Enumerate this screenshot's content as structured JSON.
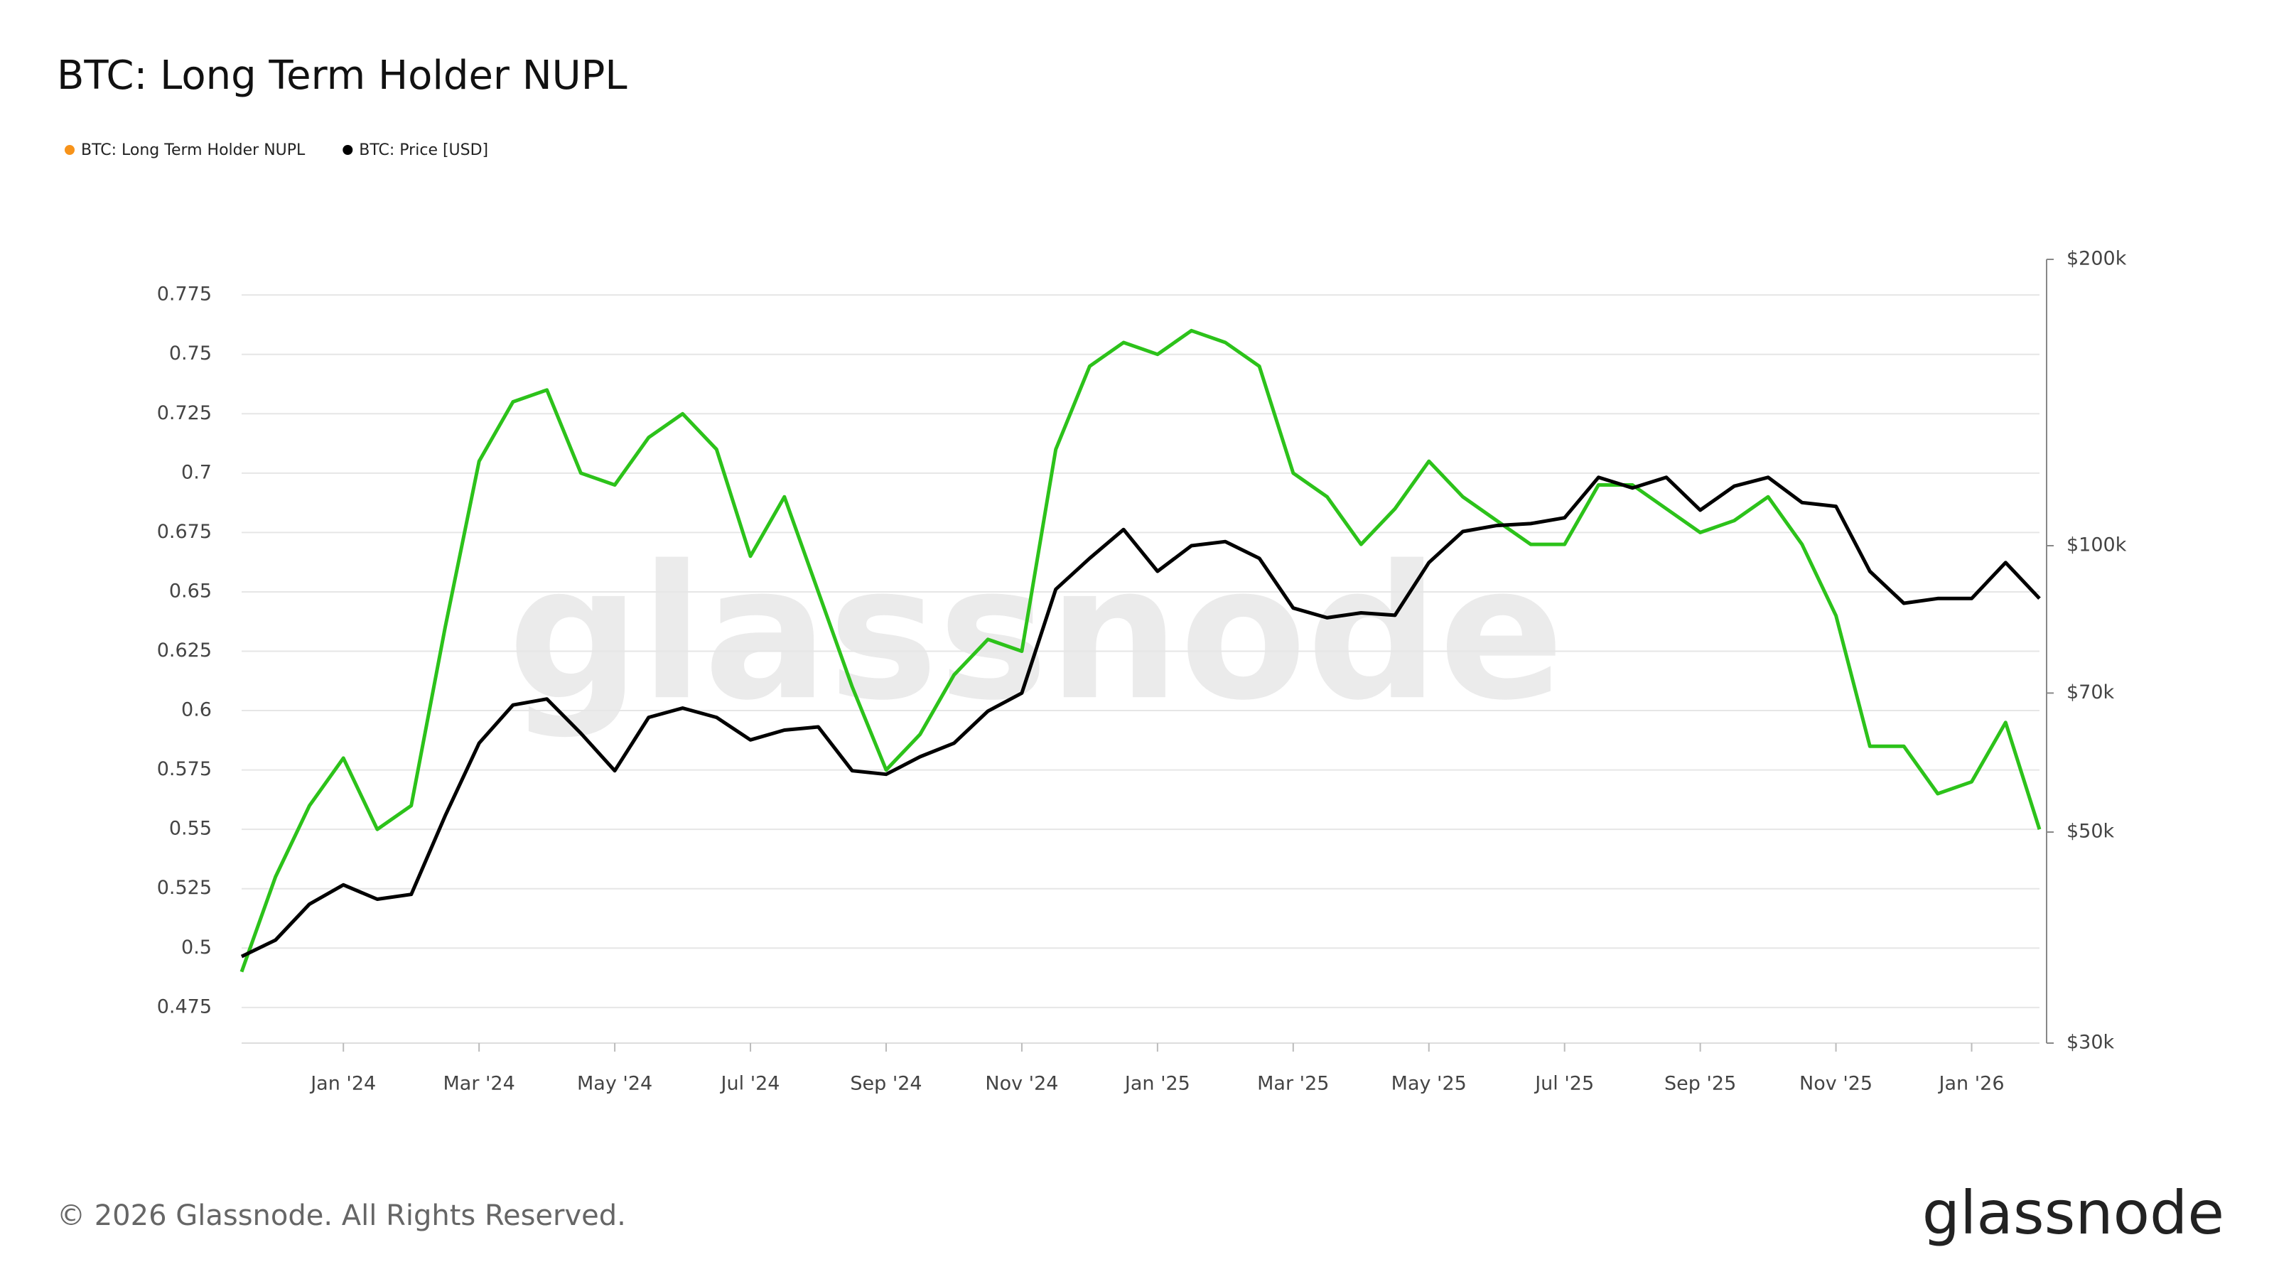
{
  "chart_data": {
    "type": "line",
    "title": "BTC: Long Term Holder NUPL",
    "copyright": "© 2026 Glassnode. All Rights Reserved.",
    "watermark": "glassnode",
    "logo": "glassnode",
    "categories": [
      null,
      null,
      null,
      "Jan '24",
      null,
      null,
      null,
      "Mar '24",
      null,
      null,
      null,
      "May '24",
      null,
      null,
      null,
      "Jul '24",
      null,
      null,
      null,
      "Sep '24",
      null,
      null,
      null,
      "Nov '24",
      null,
      null,
      null,
      "Jan '25",
      null,
      null,
      null,
      "Mar '25",
      null,
      null,
      null,
      "May '25",
      null,
      null,
      null,
      "Jul '25",
      null,
      null,
      null,
      "Sep '25",
      null,
      null,
      null,
      "Nov '25",
      null,
      null,
      null,
      "Jan '26",
      null,
      null
    ],
    "series": [
      {
        "name": "BTC: Long Term Holder NUPL",
        "color": "#f7931a",
        "line_color": "#2cc21a",
        "values": [
          0.49,
          0.53,
          0.56,
          0.58,
          0.55,
          0.56,
          0.635,
          0.705,
          0.73,
          0.735,
          0.7,
          0.695,
          0.715,
          0.725,
          0.71,
          0.665,
          0.69,
          0.65,
          0.61,
          0.575,
          0.59,
          0.615,
          0.63,
          0.625,
          0.71,
          0.745,
          0.755,
          0.75,
          0.76,
          0.755,
          0.745,
          0.7,
          0.69,
          0.67,
          0.685,
          0.705,
          0.69,
          0.68,
          0.67,
          0.67,
          0.695,
          0.695,
          0.685,
          0.675,
          0.68,
          0.69,
          0.67,
          0.64,
          0.585,
          0.585,
          0.565,
          0.57,
          0.595,
          0.55
        ]
      },
      {
        "name": "BTC: Price [USD]",
        "color": "#000000",
        "axis": "y2",
        "values": [
          37000,
          38500,
          42000,
          44000,
          42500,
          43000,
          52000,
          62000,
          68000,
          69000,
          63500,
          58000,
          66000,
          67500,
          66000,
          62500,
          64000,
          64500,
          58000,
          57500,
          60000,
          62000,
          67000,
          70000,
          90000,
          97000,
          104000,
          94000,
          100000,
          101000,
          97000,
          86000,
          84000,
          85000,
          84500,
          96000,
          103500,
          105000,
          105500,
          107000,
          118000,
          115000,
          118000,
          109000,
          115500,
          118000,
          111000,
          110000,
          94000,
          87000,
          88000,
          88000,
          96000,
          88000
        ]
      }
    ],
    "ylim": [
      0.46,
      0.79
    ],
    "yticks": [
      0.475,
      0.5,
      0.525,
      0.55,
      0.575,
      0.6,
      0.625,
      0.65,
      0.675,
      0.7,
      0.725,
      0.75,
      0.775
    ],
    "y2lim": [
      30000,
      200000
    ],
    "y2_log": true,
    "y2ticks": [
      {
        "value": 30000,
        "label": "$30k"
      },
      {
        "value": 50000,
        "label": "$50k"
      },
      {
        "value": 70000,
        "label": "$70k"
      },
      {
        "value": 100000,
        "label": "$100k"
      },
      {
        "value": 200000,
        "label": "$200k"
      }
    ],
    "grid": true
  }
}
